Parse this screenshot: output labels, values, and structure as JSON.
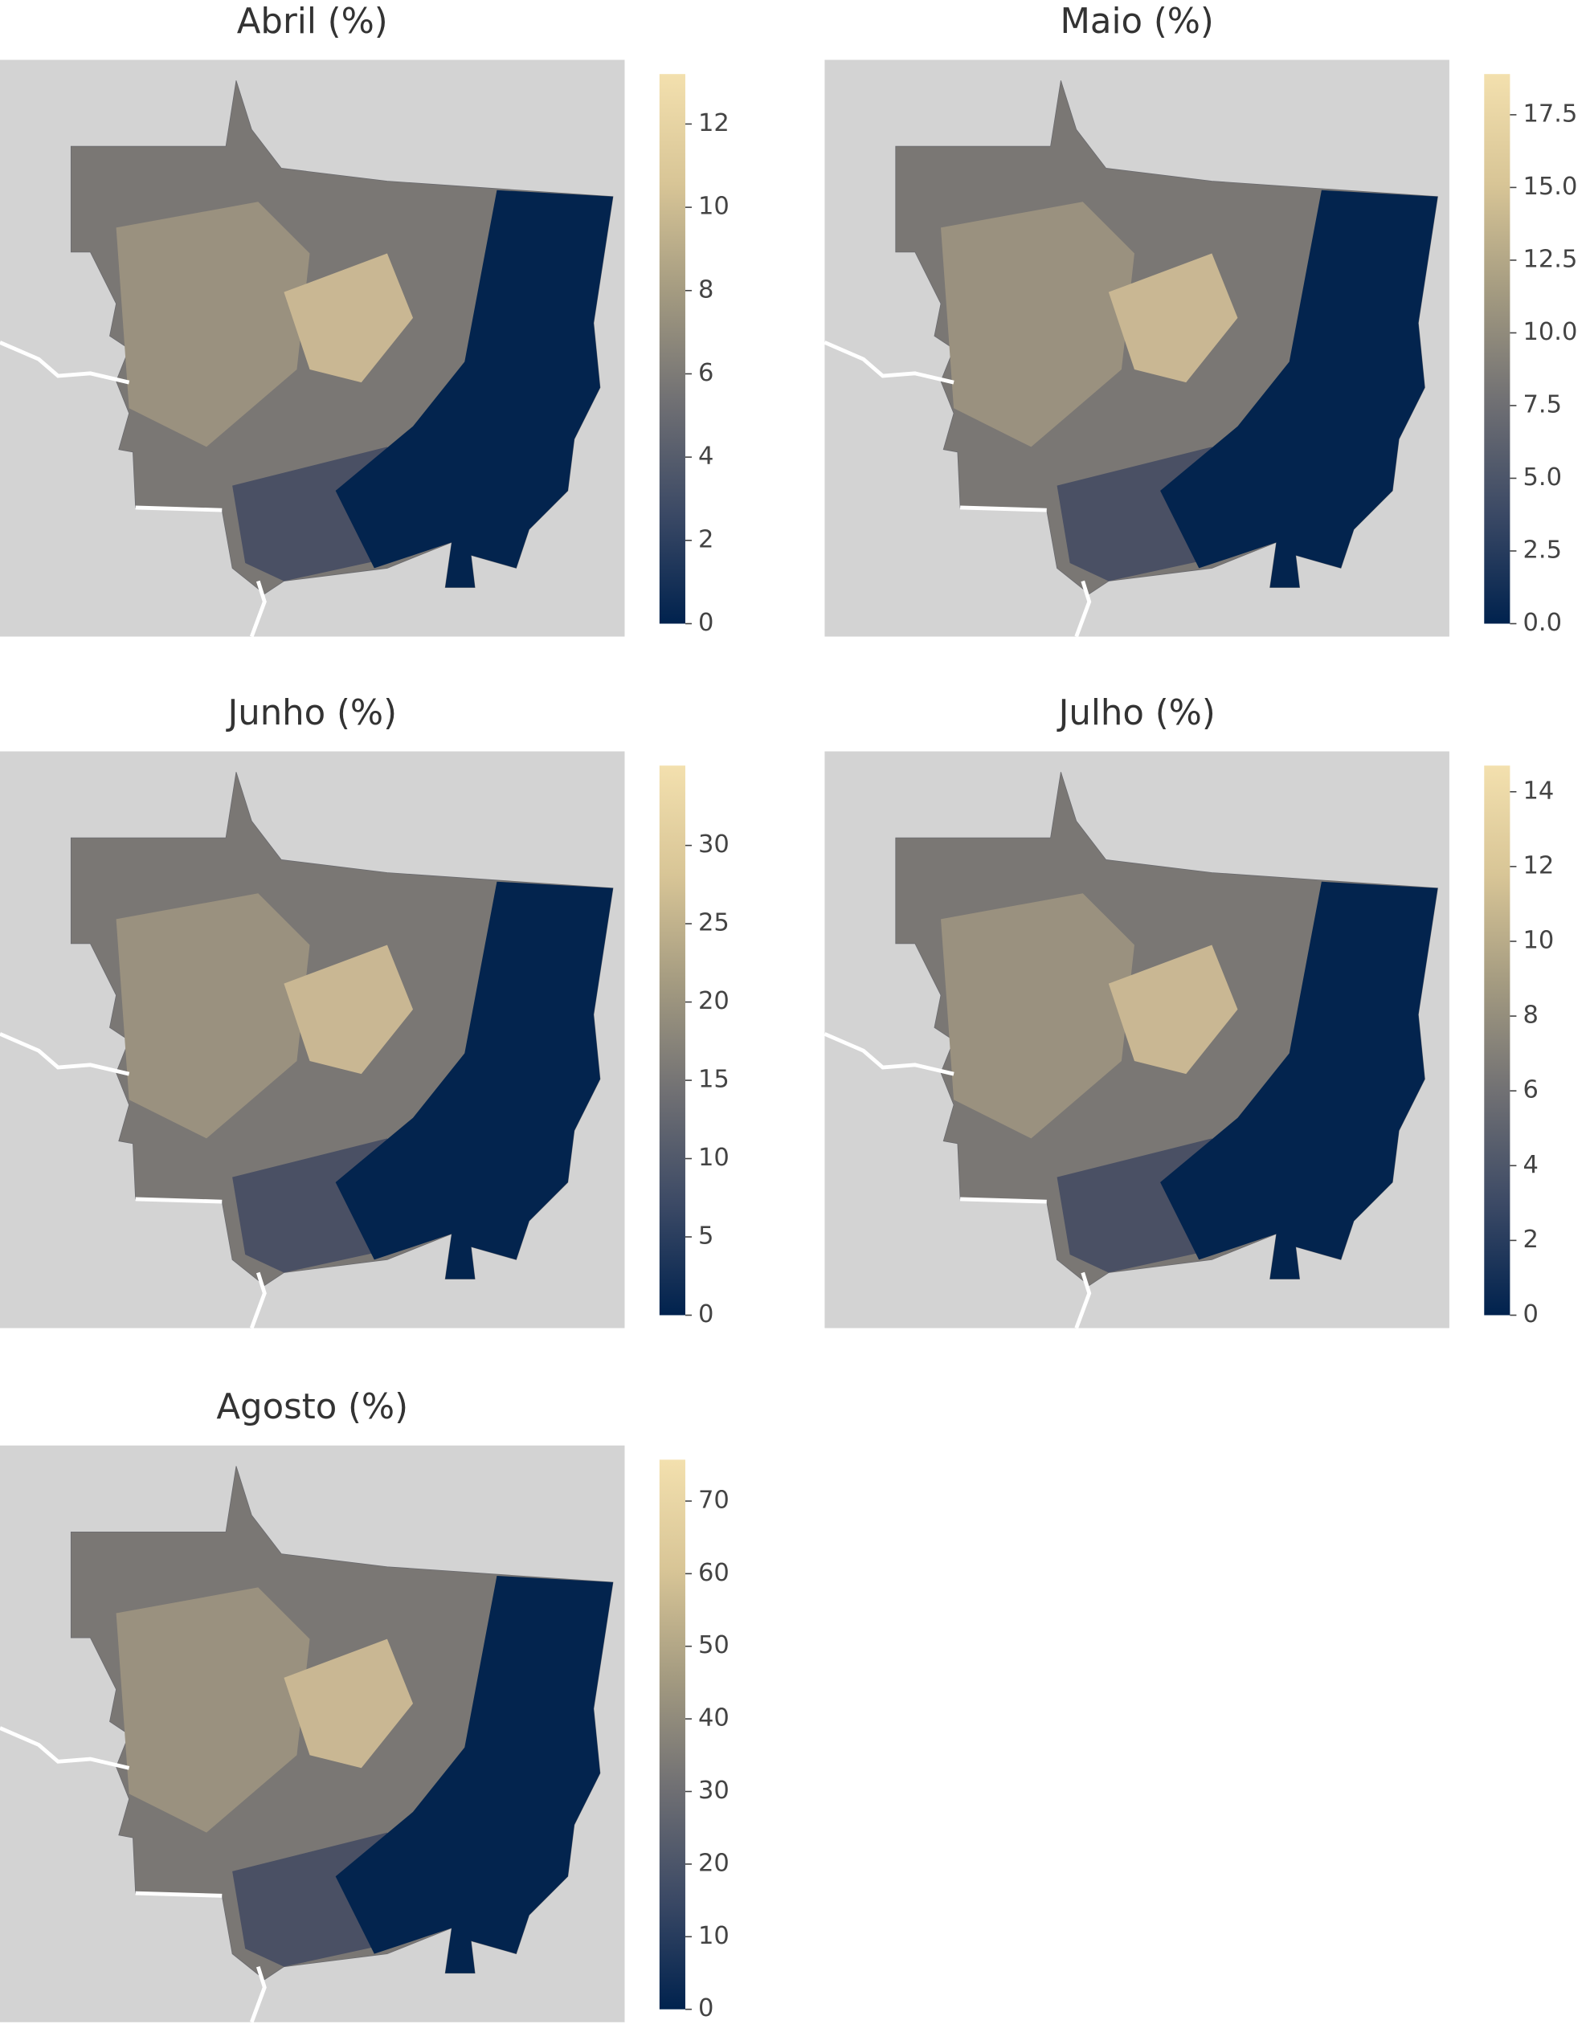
{
  "colormap": [
    "#00224e",
    "#3b4965",
    "#6f6f73",
    "#a39a80",
    "#d8c596",
    "#f3e0ae"
  ],
  "panels": [
    {
      "title": "Abril (%)",
      "clim": [
        0,
        13.2
      ],
      "ticks": [
        0,
        2,
        4,
        6,
        8,
        10,
        12
      ]
    },
    {
      "title": "Maio (%)",
      "clim": [
        0,
        18.9
      ],
      "ticks": [
        {
          "value": 0,
          "label": "0.0"
        },
        2.5,
        {
          "value": 5,
          "label": "5.0"
        },
        7.5,
        {
          "value": 10,
          "label": "10.0"
        },
        12.5,
        {
          "value": 15,
          "label": "15.0"
        },
        17.5
      ]
    },
    {
      "title": "Junho (%)",
      "clim": [
        0,
        35.1
      ],
      "ticks": [
        0,
        5,
        10,
        15,
        20,
        25,
        30
      ]
    },
    {
      "title": "Julho (%)",
      "clim": [
        0,
        14.7
      ],
      "ticks": [
        0,
        2,
        4,
        6,
        8,
        10,
        12,
        14
      ]
    },
    {
      "title": "Agosto (%)",
      "clim": [
        0,
        75.7
      ],
      "ticks": [
        0,
        10,
        20,
        30,
        40,
        50,
        60,
        70
      ]
    }
  ]
}
